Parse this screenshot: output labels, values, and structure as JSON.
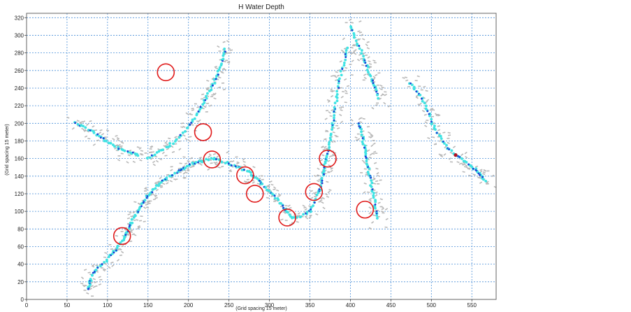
{
  "chart_data": {
    "type": "scatter",
    "title": "H Water Depth",
    "xlabel": "(Grid spacing 15 meter)",
    "ylabel": "(Grid spacing 15 meter)",
    "xlim": [
      0,
      580
    ],
    "ylim": [
      0,
      325
    ],
    "xticks": [
      0,
      50,
      100,
      150,
      200,
      250,
      300,
      350,
      400,
      450,
      500,
      550
    ],
    "yticks": [
      0,
      20,
      40,
      60,
      80,
      100,
      120,
      140,
      160,
      180,
      200,
      220,
      240,
      260,
      280,
      300,
      320
    ],
    "grid": true,
    "colors": {
      "streets": "#b8b8b8",
      "shallow": "#3fe3e3",
      "medium": "#1a3fd6",
      "deep": "#b01020",
      "circle": "#e01a1a",
      "grid": "#4a8fd8"
    },
    "highlight_circles": [
      {
        "x": 172,
        "y": 258
      },
      {
        "x": 218,
        "y": 190
      },
      {
        "x": 229,
        "y": 159
      },
      {
        "x": 270,
        "y": 141
      },
      {
        "x": 282,
        "y": 120
      },
      {
        "x": 322,
        "y": 93
      },
      {
        "x": 355,
        "y": 122
      },
      {
        "x": 372,
        "y": 160
      },
      {
        "x": 418,
        "y": 102
      },
      {
        "x": 118,
        "y": 72
      }
    ],
    "series": [
      {
        "points": [
          [
            76,
            12
          ],
          [
            78,
            18
          ],
          [
            80,
            26
          ],
          [
            86,
            34
          ],
          [
            96,
            42
          ],
          [
            104,
            50
          ],
          [
            112,
            58
          ],
          [
            118,
            66
          ],
          [
            122,
            72
          ],
          [
            126,
            80
          ],
          [
            130,
            88
          ],
          [
            135,
            96
          ],
          [
            140,
            104
          ],
          [
            146,
            112
          ],
          [
            150,
            118
          ],
          [
            156,
            124
          ],
          [
            162,
            130
          ],
          [
            170,
            136
          ],
          [
            178,
            140
          ],
          [
            188,
            146
          ],
          [
            196,
            150
          ],
          [
            204,
            154
          ],
          [
            212,
            156
          ],
          [
            220,
            158
          ],
          [
            230,
            160
          ],
          [
            240,
            158
          ],
          [
            250,
            154
          ],
          [
            262,
            150
          ],
          [
            272,
            146
          ],
          [
            280,
            140
          ],
          [
            288,
            134
          ],
          [
            296,
            126
          ],
          [
            304,
            120
          ],
          [
            312,
            112
          ],
          [
            318,
            104
          ],
          [
            324,
            96
          ],
          [
            330,
            92
          ],
          [
            340,
            94
          ],
          [
            350,
            100
          ],
          [
            356,
            110
          ],
          [
            360,
            120
          ],
          [
            364,
            130
          ],
          [
            366,
            140
          ],
          [
            368,
            150
          ],
          [
            370,
            158
          ],
          [
            372,
            166
          ],
          [
            374,
            176
          ],
          [
            376,
            186
          ],
          [
            378,
            198
          ],
          [
            380,
            210
          ],
          [
            382,
            222
          ],
          [
            384,
            234
          ],
          [
            386,
            248
          ],
          [
            390,
            262
          ],
          [
            394,
            276
          ],
          [
            396,
            288
          ]
        ]
      },
      {
        "points": [
          [
            400,
            310
          ],
          [
            404,
            300
          ],
          [
            410,
            288
          ],
          [
            416,
            276
          ],
          [
            420,
            266
          ],
          [
            424,
            256
          ],
          [
            428,
            246
          ],
          [
            432,
            236
          ],
          [
            436,
            226
          ]
        ]
      },
      {
        "points": [
          [
            150,
            160
          ],
          [
            160,
            166
          ],
          [
            172,
            172
          ],
          [
            180,
            178
          ],
          [
            190,
            186
          ],
          [
            200,
            196
          ],
          [
            208,
            206
          ],
          [
            214,
            216
          ],
          [
            220,
            226
          ],
          [
            226,
            236
          ],
          [
            232,
            246
          ],
          [
            236,
            256
          ],
          [
            240,
            266
          ],
          [
            244,
            276
          ],
          [
            246,
            286
          ]
        ]
      },
      {
        "points": [
          [
            60,
            200
          ],
          [
            70,
            196
          ],
          [
            82,
            190
          ],
          [
            92,
            184
          ],
          [
            102,
            178
          ],
          [
            112,
            172
          ],
          [
            122,
            168
          ],
          [
            134,
            166
          ],
          [
            140,
            162
          ]
        ]
      },
      {
        "points": [
          [
            410,
            200
          ],
          [
            414,
            190
          ],
          [
            416,
            180
          ],
          [
            418,
            170
          ],
          [
            420,
            160
          ],
          [
            422,
            150
          ],
          [
            424,
            140
          ],
          [
            426,
            130
          ],
          [
            428,
            120
          ],
          [
            430,
            110
          ],
          [
            432,
            100
          ],
          [
            434,
            90
          ]
        ]
      },
      {
        "points": [
          [
            474,
            246
          ],
          [
            482,
            236
          ],
          [
            490,
            226
          ],
          [
            496,
            214
          ],
          [
            500,
            202
          ],
          [
            506,
            192
          ],
          [
            512,
            182
          ],
          [
            520,
            172
          ],
          [
            530,
            164
          ],
          [
            540,
            158
          ],
          [
            548,
            152
          ],
          [
            556,
            146
          ],
          [
            562,
            140
          ],
          [
            568,
            134
          ]
        ]
      }
    ]
  }
}
